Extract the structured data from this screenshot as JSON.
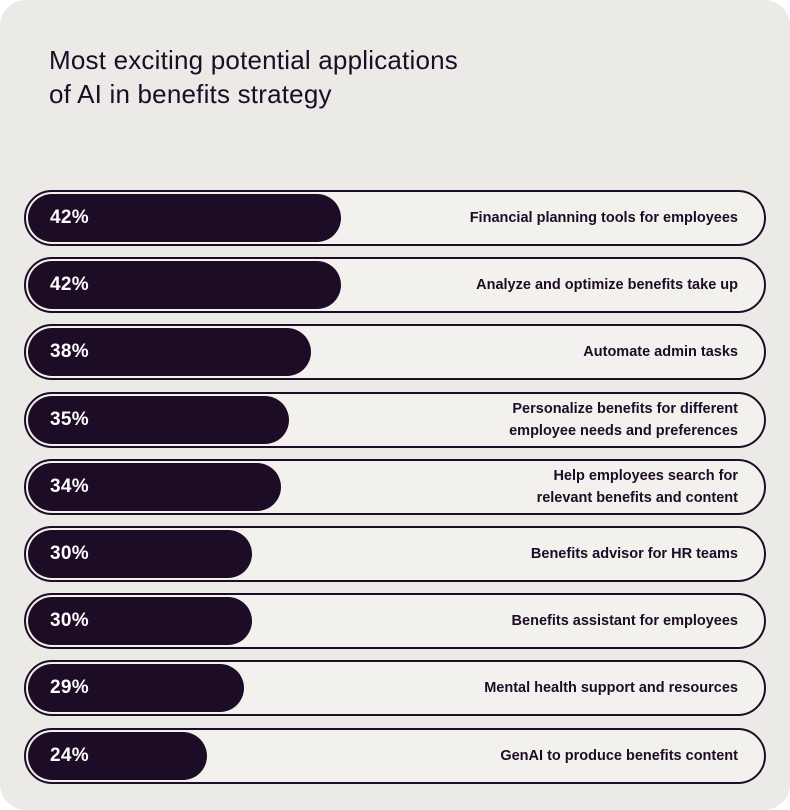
{
  "title_lines": [
    "Most exciting potential applications",
    "of AI in benefits strategy"
  ],
  "chart_data": {
    "type": "bar",
    "orientation": "horizontal",
    "title": "Most exciting potential applications of AI in benefits strategy",
    "categories": [
      "Financial planning tools for employees",
      "Analyze and optimize benefits take up",
      "Automate admin tasks",
      "Personalize benefits for different\nemployee needs and preferences",
      "Help employees search for\nrelevant benefits and content",
      "Benefits advisor for HR teams",
      "Benefits assistant for employees",
      "Mental health support and resources",
      "GenAI to produce benefits content"
    ],
    "values": [
      42,
      42,
      38,
      35,
      34,
      30,
      30,
      29,
      24
    ],
    "value_labels": [
      "42%",
      "42%",
      "38%",
      "35%",
      "34%",
      "30%",
      "30%",
      "29%",
      "24%"
    ],
    "xlim": [
      0,
      100
    ],
    "grid": false,
    "colors": {
      "fill": "#1c0c26",
      "track": "#f3f1ee",
      "background": "#eceae6",
      "value_text": "#ffffff"
    }
  }
}
